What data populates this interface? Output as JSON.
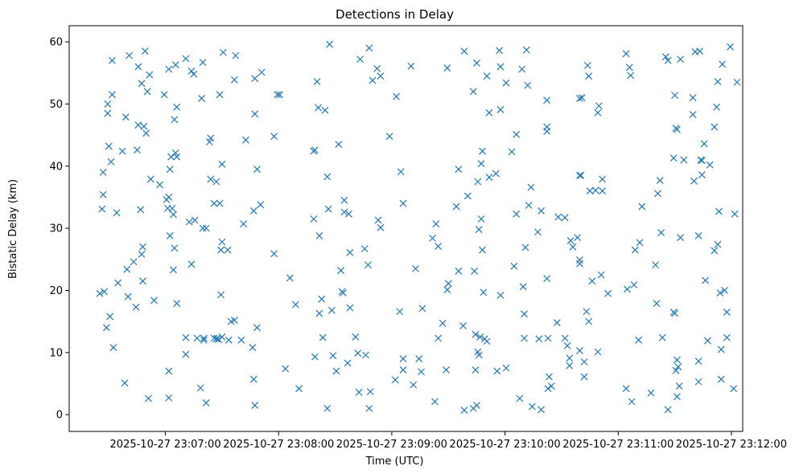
{
  "chart_data": {
    "type": "scatter",
    "title": "Detections in Delay",
    "xlabel": "Time (UTC)",
    "ylabel": "Bistatic Delay (km)",
    "marker": "x",
    "color": "#1f77b4",
    "x_unit": "minutes after 2025-10-27 23:07:00",
    "xlim": [
      -0.85,
      5.1
    ],
    "ylim": [
      -2.7,
      62.6
    ],
    "x_ticks": [
      0,
      1,
      2,
      3,
      4,
      5
    ],
    "x_tick_labels": [
      "2025-10-27 23:07:00",
      "2025-10-27 23:08:00",
      "2025-10-27 23:09:00",
      "2025-10-27 23:10:00",
      "2025-10-27 23:11:00",
      "2025-10-27 23:12:00"
    ],
    "y_ticks": [
      0,
      10,
      20,
      30,
      40,
      50,
      60
    ],
    "y_tick_labels": [
      "0",
      "10",
      "20",
      "30",
      "40",
      "50",
      "60"
    ],
    "points": [
      [
        -0.58,
        19.5
      ],
      [
        -0.56,
        33.1
      ],
      [
        -0.55,
        39.0
      ],
      [
        -0.55,
        35.4
      ],
      [
        -0.54,
        19.8
      ],
      [
        -0.52,
        14.0
      ],
      [
        -0.51,
        48.5
      ],
      [
        -0.51,
        50.0
      ],
      [
        -0.5,
        43.2
      ],
      [
        -0.49,
        15.8
      ],
      [
        -0.48,
        40.7
      ],
      [
        -0.47,
        51.5
      ],
      [
        -0.47,
        57.0
      ],
      [
        -0.46,
        10.8
      ],
      [
        -0.43,
        32.5
      ],
      [
        -0.42,
        21.2
      ],
      [
        -0.38,
        42.4
      ],
      [
        -0.36,
        5.1
      ],
      [
        -0.35,
        47.9
      ],
      [
        -0.34,
        23.4
      ],
      [
        -0.33,
        19.0
      ],
      [
        -0.32,
        57.8
      ],
      [
        -0.28,
        24.6
      ],
      [
        -0.26,
        17.3
      ],
      [
        -0.25,
        42.6
      ],
      [
        -0.24,
        46.6
      ],
      [
        -0.24,
        56.0
      ],
      [
        -0.22,
        33.0
      ],
      [
        -0.21,
        25.8
      ],
      [
        -0.21,
        53.3
      ],
      [
        -0.2,
        27.0
      ],
      [
        -0.2,
        21.5
      ],
      [
        -0.19,
        46.4
      ],
      [
        -0.18,
        58.5
      ],
      [
        -0.17,
        45.3
      ],
      [
        -0.16,
        52.0
      ],
      [
        -0.15,
        2.6
      ],
      [
        -0.14,
        54.7
      ],
      [
        -0.13,
        37.9
      ],
      [
        -0.1,
        18.4
      ],
      [
        -0.05,
        37.0
      ],
      [
        -0.01,
        51.5
      ],
      [
        0.01,
        34.6
      ],
      [
        0.02,
        33.2
      ],
      [
        0.03,
        55.6
      ],
      [
        0.03,
        35.0
      ],
      [
        0.03,
        7.0
      ],
      [
        0.03,
        2.7
      ],
      [
        0.04,
        28.8
      ],
      [
        0.04,
        39.5
      ],
      [
        0.05,
        41.5
      ],
      [
        0.06,
        33.2
      ],
      [
        0.07,
        32.2
      ],
      [
        0.07,
        23.3
      ],
      [
        0.08,
        26.8
      ],
      [
        0.08,
        47.5
      ],
      [
        0.09,
        42.1
      ],
      [
        0.09,
        56.3
      ],
      [
        0.1,
        41.5
      ],
      [
        0.1,
        49.5
      ],
      [
        0.1,
        17.9
      ],
      [
        0.18,
        12.4
      ],
      [
        0.18,
        57.3
      ],
      [
        0.18,
        9.7
      ],
      [
        0.21,
        31.0
      ],
      [
        0.23,
        24.2
      ],
      [
        0.23,
        55.3
      ],
      [
        0.25,
        54.8
      ],
      [
        0.26,
        31.3
      ],
      [
        0.28,
        12.3
      ],
      [
        0.31,
        4.3
      ],
      [
        0.32,
        50.9
      ],
      [
        0.33,
        56.7
      ],
      [
        0.33,
        30.0
      ],
      [
        0.34,
        12.3
      ],
      [
        0.34,
        12.0
      ],
      [
        0.36,
        1.9
      ],
      [
        0.36,
        30.0
      ],
      [
        0.39,
        43.9
      ],
      [
        0.4,
        44.5
      ],
      [
        0.4,
        37.9
      ],
      [
        0.43,
        34.0
      ],
      [
        0.43,
        12.3
      ],
      [
        0.45,
        12.2
      ],
      [
        0.45,
        37.5
      ],
      [
        0.46,
        12.3
      ],
      [
        0.47,
        12.1
      ],
      [
        0.48,
        34.0
      ],
      [
        0.48,
        51.5
      ],
      [
        0.49,
        19.3
      ],
      [
        0.49,
        26.5
      ],
      [
        0.5,
        27.8
      ],
      [
        0.5,
        40.3
      ],
      [
        0.5,
        12.5
      ],
      [
        0.51,
        58.3
      ],
      [
        0.55,
        26.5
      ],
      [
        0.56,
        12.0
      ],
      [
        0.58,
        15.0
      ],
      [
        0.61,
        15.2
      ],
      [
        0.61,
        53.9
      ],
      [
        0.62,
        57.8
      ],
      [
        0.67,
        12.0
      ],
      [
        0.69,
        30.7
      ],
      [
        0.71,
        44.2
      ],
      [
        0.77,
        10.8
      ],
      [
        0.78,
        32.8
      ],
      [
        0.78,
        5.7
      ],
      [
        0.79,
        1.5
      ],
      [
        0.79,
        54.1
      ],
      [
        0.79,
        48.4
      ],
      [
        0.81,
        14.0
      ],
      [
        0.81,
        39.5
      ],
      [
        0.84,
        33.8
      ],
      [
        0.85,
        55.1
      ],
      [
        0.96,
        25.9
      ],
      [
        0.96,
        44.8
      ],
      [
        0.99,
        51.5
      ],
      [
        1.01,
        51.5
      ],
      [
        1.06,
        7.4
      ],
      [
        1.1,
        22.0
      ],
      [
        1.15,
        17.7
      ],
      [
        1.18,
        4.2
      ],
      [
        1.31,
        31.5
      ],
      [
        1.31,
        42.4
      ],
      [
        1.32,
        42.6
      ],
      [
        1.32,
        9.3
      ],
      [
        1.34,
        53.6
      ],
      [
        1.35,
        49.4
      ],
      [
        1.36,
        16.3
      ],
      [
        1.36,
        28.8
      ],
      [
        1.38,
        18.6
      ],
      [
        1.39,
        12.4
      ],
      [
        1.41,
        49.0
      ],
      [
        1.43,
        1.0
      ],
      [
        1.43,
        38.3
      ],
      [
        1.44,
        33.1
      ],
      [
        1.45,
        59.6
      ],
      [
        1.47,
        16.8
      ],
      [
        1.48,
        9.5
      ],
      [
        1.51,
        7.0
      ],
      [
        1.53,
        43.5
      ],
      [
        1.55,
        23.2
      ],
      [
        1.56,
        19.8
      ],
      [
        1.57,
        19.6
      ],
      [
        1.58,
        34.5
      ],
      [
        1.58,
        32.6
      ],
      [
        1.61,
        8.3
      ],
      [
        1.62,
        32.3
      ],
      [
        1.63,
        17.2
      ],
      [
        1.63,
        26.1
      ],
      [
        1.68,
        12.5
      ],
      [
        1.7,
        9.9
      ],
      [
        1.71,
        3.6
      ],
      [
        1.72,
        57.2
      ],
      [
        1.76,
        26.7
      ],
      [
        1.77,
        9.6
      ],
      [
        1.79,
        24.1
      ],
      [
        1.8,
        1.0
      ],
      [
        1.8,
        59.0
      ],
      [
        1.81,
        3.7
      ],
      [
        1.83,
        53.8
      ],
      [
        1.87,
        55.7
      ],
      [
        1.88,
        31.3
      ],
      [
        1.9,
        30.1
      ],
      [
        1.9,
        54.5
      ],
      [
        1.98,
        44.8
      ],
      [
        2.03,
        5.6
      ],
      [
        2.04,
        51.2
      ],
      [
        2.07,
        16.6
      ],
      [
        2.08,
        39.1
      ],
      [
        2.1,
        7.2
      ],
      [
        2.1,
        9.0
      ],
      [
        2.1,
        34.0
      ],
      [
        2.17,
        56.1
      ],
      [
        2.19,
        4.8
      ],
      [
        2.21,
        23.5
      ],
      [
        2.24,
        9.0
      ],
      [
        2.26,
        6.9
      ],
      [
        2.27,
        17.1
      ],
      [
        2.36,
        28.4
      ],
      [
        2.38,
        2.1
      ],
      [
        2.39,
        30.7
      ],
      [
        2.41,
        27.1
      ],
      [
        2.41,
        12.3
      ],
      [
        2.45,
        14.7
      ],
      [
        2.48,
        7.2
      ],
      [
        2.49,
        55.8
      ],
      [
        2.49,
        20.1
      ],
      [
        2.5,
        21.1
      ],
      [
        2.57,
        33.5
      ],
      [
        2.59,
        39.5
      ],
      [
        2.59,
        23.1
      ],
      [
        2.63,
        14.3
      ],
      [
        2.64,
        0.7
      ],
      [
        2.64,
        58.5
      ],
      [
        2.67,
        35.2
      ],
      [
        2.72,
        1.0
      ],
      [
        2.72,
        52.0
      ],
      [
        2.73,
        23.1
      ],
      [
        2.74,
        7.2
      ],
      [
        2.74,
        12.9
      ],
      [
        2.75,
        1.5
      ],
      [
        2.75,
        56.6
      ],
      [
        2.76,
        10.1
      ],
      [
        2.76,
        37.5
      ],
      [
        2.77,
        9.6
      ],
      [
        2.77,
        29.8
      ],
      [
        2.78,
        12.5
      ],
      [
        2.79,
        40.4
      ],
      [
        2.79,
        31.5
      ],
      [
        2.8,
        26.5
      ],
      [
        2.8,
        42.4
      ],
      [
        2.81,
        19.7
      ],
      [
        2.82,
        12.2
      ],
      [
        2.84,
        11.8
      ],
      [
        2.84,
        54.5
      ],
      [
        2.86,
        38.2
      ],
      [
        2.86,
        48.6
      ],
      [
        2.92,
        38.8
      ],
      [
        2.93,
        7.0
      ],
      [
        2.95,
        58.6
      ],
      [
        2.96,
        49.1
      ],
      [
        2.96,
        56.0
      ],
      [
        2.96,
        19.2
      ],
      [
        3.01,
        53.4
      ],
      [
        3.01,
        7.5
      ],
      [
        3.06,
        42.3
      ],
      [
        3.08,
        23.9
      ],
      [
        3.1,
        45.1
      ],
      [
        3.1,
        32.3
      ],
      [
        3.13,
        2.6
      ],
      [
        3.15,
        55.6
      ],
      [
        3.16,
        20.6
      ],
      [
        3.17,
        16.2
      ],
      [
        3.17,
        12.3
      ],
      [
        3.18,
        26.9
      ],
      [
        3.19,
        58.7
      ],
      [
        3.2,
        53.0
      ],
      [
        3.21,
        33.7
      ],
      [
        3.23,
        36.6
      ],
      [
        3.24,
        1.3
      ],
      [
        3.29,
        29.4
      ],
      [
        3.3,
        12.2
      ],
      [
        3.32,
        32.8
      ],
      [
        3.32,
        0.8
      ],
      [
        3.37,
        50.6
      ],
      [
        3.37,
        45.6
      ],
      [
        3.37,
        46.3
      ],
      [
        3.37,
        21.9
      ],
      [
        3.38,
        12.3
      ],
      [
        3.38,
        4.2
      ],
      [
        3.39,
        6.1
      ],
      [
        3.41,
        4.6
      ],
      [
        3.46,
        14.8
      ],
      [
        3.47,
        31.8
      ],
      [
        3.53,
        31.7
      ],
      [
        3.53,
        12.3
      ],
      [
        3.55,
        11.1
      ],
      [
        3.57,
        9.1
      ],
      [
        3.57,
        7.9
      ],
      [
        3.58,
        28.0
      ],
      [
        3.6,
        27.0
      ],
      [
        3.64,
        28.5
      ],
      [
        3.66,
        24.9
      ],
      [
        3.66,
        24.3
      ],
      [
        3.66,
        10.3
      ],
      [
        3.66,
        38.5
      ],
      [
        3.66,
        50.9
      ],
      [
        3.67,
        38.5
      ],
      [
        3.68,
        51.0
      ],
      [
        3.7,
        6.1
      ],
      [
        3.7,
        8.5
      ],
      [
        3.72,
        16.6
      ],
      [
        3.73,
        56.2
      ],
      [
        3.74,
        54.5
      ],
      [
        3.74,
        15.0
      ],
      [
        3.75,
        36.0
      ],
      [
        3.77,
        21.5
      ],
      [
        3.8,
        36.1
      ],
      [
        3.82,
        10.1
      ],
      [
        3.82,
        48.6
      ],
      [
        3.83,
        49.7
      ],
      [
        3.85,
        22.5
      ],
      [
        3.86,
        36.0
      ],
      [
        3.86,
        37.9
      ],
      [
        3.91,
        19.5
      ],
      [
        4.07,
        58.1
      ],
      [
        4.07,
        4.2
      ],
      [
        4.08,
        20.2
      ],
      [
        4.1,
        55.9
      ],
      [
        4.11,
        54.6
      ],
      [
        4.12,
        2.1
      ],
      [
        4.14,
        20.9
      ],
      [
        4.15,
        26.5
      ],
      [
        4.18,
        12.0
      ],
      [
        4.19,
        27.7
      ],
      [
        4.21,
        33.5
      ],
      [
        4.29,
        3.5
      ],
      [
        4.33,
        24.1
      ],
      [
        4.34,
        17.9
      ],
      [
        4.35,
        35.6
      ],
      [
        4.37,
        37.7
      ],
      [
        4.38,
        29.3
      ],
      [
        4.39,
        12.4
      ],
      [
        4.42,
        57.6
      ],
      [
        4.44,
        57.0
      ],
      [
        4.44,
        0.8
      ],
      [
        4.49,
        16.5
      ],
      [
        4.49,
        41.3
      ],
      [
        4.5,
        16.3
      ],
      [
        4.5,
        51.4
      ],
      [
        4.51,
        46.1
      ],
      [
        4.51,
        7.1
      ],
      [
        4.52,
        2.9
      ],
      [
        4.52,
        8.8
      ],
      [
        4.52,
        45.9
      ],
      [
        4.53,
        7.7
      ],
      [
        4.54,
        4.6
      ],
      [
        4.55,
        28.5
      ],
      [
        4.55,
        57.2
      ],
      [
        4.58,
        41.0
      ],
      [
        4.66,
        51.0
      ],
      [
        4.66,
        48.3
      ],
      [
        4.67,
        37.6
      ],
      [
        4.68,
        58.4
      ],
      [
        4.71,
        28.8
      ],
      [
        4.71,
        8.6
      ],
      [
        4.71,
        5.3
      ],
      [
        4.72,
        58.5
      ],
      [
        4.73,
        41.0
      ],
      [
        4.74,
        38.6
      ],
      [
        4.74,
        40.9
      ],
      [
        4.76,
        43.6
      ],
      [
        4.77,
        21.6
      ],
      [
        4.79,
        11.9
      ],
      [
        4.81,
        40.2
      ],
      [
        4.85,
        26.4
      ],
      [
        4.85,
        46.3
      ],
      [
        4.87,
        49.5
      ],
      [
        4.88,
        27.4
      ],
      [
        4.88,
        53.6
      ],
      [
        4.89,
        32.7
      ],
      [
        4.9,
        19.6
      ],
      [
        4.91,
        10.5
      ],
      [
        4.91,
        5.7
      ],
      [
        4.92,
        56.4
      ],
      [
        4.94,
        20.0
      ],
      [
        4.96,
        16.5
      ],
      [
        4.96,
        12.4
      ],
      [
        4.99,
        59.2
      ],
      [
        5.02,
        4.2
      ],
      [
        5.03,
        32.3
      ],
      [
        5.05,
        53.5
      ]
    ]
  }
}
